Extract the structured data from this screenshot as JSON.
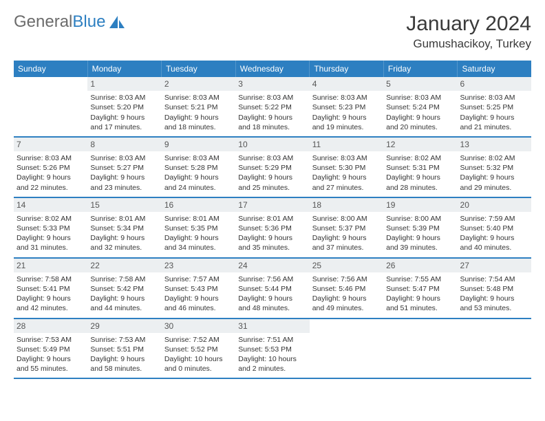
{
  "brand": {
    "part1": "General",
    "part2": "Blue"
  },
  "title": "January 2024",
  "location": "Gumushacikoy, Turkey",
  "colors": {
    "accent": "#2d7fc1",
    "dayBg": "#eceff1",
    "text": "#333333"
  },
  "dow": [
    "Sunday",
    "Monday",
    "Tuesday",
    "Wednesday",
    "Thursday",
    "Friday",
    "Saturday"
  ],
  "weeks": [
    [
      null,
      {
        "n": "1",
        "sr": "Sunrise: 8:03 AM",
        "ss": "Sunset: 5:20 PM",
        "d1": "Daylight: 9 hours",
        "d2": "and 17 minutes."
      },
      {
        "n": "2",
        "sr": "Sunrise: 8:03 AM",
        "ss": "Sunset: 5:21 PM",
        "d1": "Daylight: 9 hours",
        "d2": "and 18 minutes."
      },
      {
        "n": "3",
        "sr": "Sunrise: 8:03 AM",
        "ss": "Sunset: 5:22 PM",
        "d1": "Daylight: 9 hours",
        "d2": "and 18 minutes."
      },
      {
        "n": "4",
        "sr": "Sunrise: 8:03 AM",
        "ss": "Sunset: 5:23 PM",
        "d1": "Daylight: 9 hours",
        "d2": "and 19 minutes."
      },
      {
        "n": "5",
        "sr": "Sunrise: 8:03 AM",
        "ss": "Sunset: 5:24 PM",
        "d1": "Daylight: 9 hours",
        "d2": "and 20 minutes."
      },
      {
        "n": "6",
        "sr": "Sunrise: 8:03 AM",
        "ss": "Sunset: 5:25 PM",
        "d1": "Daylight: 9 hours",
        "d2": "and 21 minutes."
      }
    ],
    [
      {
        "n": "7",
        "sr": "Sunrise: 8:03 AM",
        "ss": "Sunset: 5:26 PM",
        "d1": "Daylight: 9 hours",
        "d2": "and 22 minutes."
      },
      {
        "n": "8",
        "sr": "Sunrise: 8:03 AM",
        "ss": "Sunset: 5:27 PM",
        "d1": "Daylight: 9 hours",
        "d2": "and 23 minutes."
      },
      {
        "n": "9",
        "sr": "Sunrise: 8:03 AM",
        "ss": "Sunset: 5:28 PM",
        "d1": "Daylight: 9 hours",
        "d2": "and 24 minutes."
      },
      {
        "n": "10",
        "sr": "Sunrise: 8:03 AM",
        "ss": "Sunset: 5:29 PM",
        "d1": "Daylight: 9 hours",
        "d2": "and 25 minutes."
      },
      {
        "n": "11",
        "sr": "Sunrise: 8:03 AM",
        "ss": "Sunset: 5:30 PM",
        "d1": "Daylight: 9 hours",
        "d2": "and 27 minutes."
      },
      {
        "n": "12",
        "sr": "Sunrise: 8:02 AM",
        "ss": "Sunset: 5:31 PM",
        "d1": "Daylight: 9 hours",
        "d2": "and 28 minutes."
      },
      {
        "n": "13",
        "sr": "Sunrise: 8:02 AM",
        "ss": "Sunset: 5:32 PM",
        "d1": "Daylight: 9 hours",
        "d2": "and 29 minutes."
      }
    ],
    [
      {
        "n": "14",
        "sr": "Sunrise: 8:02 AM",
        "ss": "Sunset: 5:33 PM",
        "d1": "Daylight: 9 hours",
        "d2": "and 31 minutes."
      },
      {
        "n": "15",
        "sr": "Sunrise: 8:01 AM",
        "ss": "Sunset: 5:34 PM",
        "d1": "Daylight: 9 hours",
        "d2": "and 32 minutes."
      },
      {
        "n": "16",
        "sr": "Sunrise: 8:01 AM",
        "ss": "Sunset: 5:35 PM",
        "d1": "Daylight: 9 hours",
        "d2": "and 34 minutes."
      },
      {
        "n": "17",
        "sr": "Sunrise: 8:01 AM",
        "ss": "Sunset: 5:36 PM",
        "d1": "Daylight: 9 hours",
        "d2": "and 35 minutes."
      },
      {
        "n": "18",
        "sr": "Sunrise: 8:00 AM",
        "ss": "Sunset: 5:37 PM",
        "d1": "Daylight: 9 hours",
        "d2": "and 37 minutes."
      },
      {
        "n": "19",
        "sr": "Sunrise: 8:00 AM",
        "ss": "Sunset: 5:39 PM",
        "d1": "Daylight: 9 hours",
        "d2": "and 39 minutes."
      },
      {
        "n": "20",
        "sr": "Sunrise: 7:59 AM",
        "ss": "Sunset: 5:40 PM",
        "d1": "Daylight: 9 hours",
        "d2": "and 40 minutes."
      }
    ],
    [
      {
        "n": "21",
        "sr": "Sunrise: 7:58 AM",
        "ss": "Sunset: 5:41 PM",
        "d1": "Daylight: 9 hours",
        "d2": "and 42 minutes."
      },
      {
        "n": "22",
        "sr": "Sunrise: 7:58 AM",
        "ss": "Sunset: 5:42 PM",
        "d1": "Daylight: 9 hours",
        "d2": "and 44 minutes."
      },
      {
        "n": "23",
        "sr": "Sunrise: 7:57 AM",
        "ss": "Sunset: 5:43 PM",
        "d1": "Daylight: 9 hours",
        "d2": "and 46 minutes."
      },
      {
        "n": "24",
        "sr": "Sunrise: 7:56 AM",
        "ss": "Sunset: 5:44 PM",
        "d1": "Daylight: 9 hours",
        "d2": "and 48 minutes."
      },
      {
        "n": "25",
        "sr": "Sunrise: 7:56 AM",
        "ss": "Sunset: 5:46 PM",
        "d1": "Daylight: 9 hours",
        "d2": "and 49 minutes."
      },
      {
        "n": "26",
        "sr": "Sunrise: 7:55 AM",
        "ss": "Sunset: 5:47 PM",
        "d1": "Daylight: 9 hours",
        "d2": "and 51 minutes."
      },
      {
        "n": "27",
        "sr": "Sunrise: 7:54 AM",
        "ss": "Sunset: 5:48 PM",
        "d1": "Daylight: 9 hours",
        "d2": "and 53 minutes."
      }
    ],
    [
      {
        "n": "28",
        "sr": "Sunrise: 7:53 AM",
        "ss": "Sunset: 5:49 PM",
        "d1": "Daylight: 9 hours",
        "d2": "and 55 minutes."
      },
      {
        "n": "29",
        "sr": "Sunrise: 7:53 AM",
        "ss": "Sunset: 5:51 PM",
        "d1": "Daylight: 9 hours",
        "d2": "and 58 minutes."
      },
      {
        "n": "30",
        "sr": "Sunrise: 7:52 AM",
        "ss": "Sunset: 5:52 PM",
        "d1": "Daylight: 10 hours",
        "d2": "and 0 minutes."
      },
      {
        "n": "31",
        "sr": "Sunrise: 7:51 AM",
        "ss": "Sunset: 5:53 PM",
        "d1": "Daylight: 10 hours",
        "d2": "and 2 minutes."
      },
      null,
      null,
      null
    ]
  ]
}
